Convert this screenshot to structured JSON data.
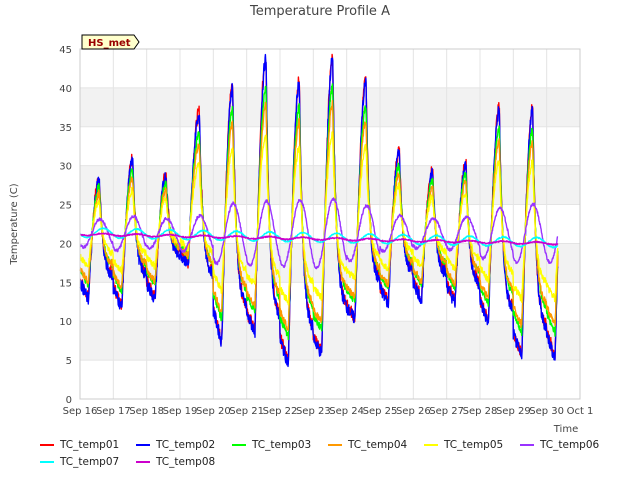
{
  "chart_data": {
    "type": "line",
    "title": "Temperature Profile A",
    "xlabel": "Time",
    "ylabel": "Temperature (C)",
    "annotation": "HS_met",
    "ylim": [
      0,
      45
    ],
    "yticks": [
      0,
      5,
      10,
      15,
      20,
      25,
      30,
      35,
      40,
      45
    ],
    "xticks": [
      "Sep 16",
      "Sep 17",
      "Sep 18",
      "Sep 19",
      "Sep 20",
      "Sep 21",
      "Sep 22",
      "Sep 23",
      "Sep 24",
      "Sep 25",
      "Sep 26",
      "Sep 27",
      "Sep 28",
      "Sep 29",
      "Sep 30",
      "Oct 1"
    ],
    "x_start": "2024-09-16",
    "x_end": "2024-10-01",
    "data_end": "2024-09-30T08:00",
    "daily_max": [
      28.5,
      31.0,
      29.0,
      37.0,
      40.5,
      44.0,
      41.0,
      44.0,
      41.0,
      32.0,
      29.5,
      30.5,
      37.5,
      37.5
    ],
    "daily_min": [
      13.0,
      12.0,
      13.0,
      17.5,
      7.5,
      9.0,
      4.8,
      6.0,
      10.5,
      12.5,
      13.0,
      12.5,
      10.0,
      5.5
    ],
    "grid": true,
    "legend_position": "bottom",
    "series": [
      {
        "name": "TC_temp01",
        "color": "#ff0000",
        "kind": "surface",
        "amp": 1.0,
        "offset": 0.0
      },
      {
        "name": "TC_temp02",
        "color": "#0000ff",
        "kind": "surface",
        "amp": 1.0,
        "offset": -0.3
      },
      {
        "name": "TC_temp03",
        "color": "#00ff00",
        "kind": "surface",
        "amp": 0.82,
        "offset": 0.4
      },
      {
        "name": "TC_temp04",
        "color": "#ff9900",
        "kind": "surface",
        "amp": 0.74,
        "offset": 0.2
      },
      {
        "name": "TC_temp05",
        "color": "#ffff00",
        "kind": "surface",
        "amp": 0.55,
        "offset": 0.8
      },
      {
        "name": "TC_temp06",
        "color": "#9933ff",
        "kind": "damped",
        "mean": 21.3,
        "amp": 2.2
      },
      {
        "name": "TC_temp07",
        "color": "#00ffff",
        "kind": "deep",
        "start": 21.4,
        "end": 20.1,
        "amp": 0.6
      },
      {
        "name": "TC_temp08",
        "color": "#cc00cc",
        "kind": "deep",
        "start": 21.2,
        "end": 20.0,
        "amp": 0.15
      }
    ]
  }
}
